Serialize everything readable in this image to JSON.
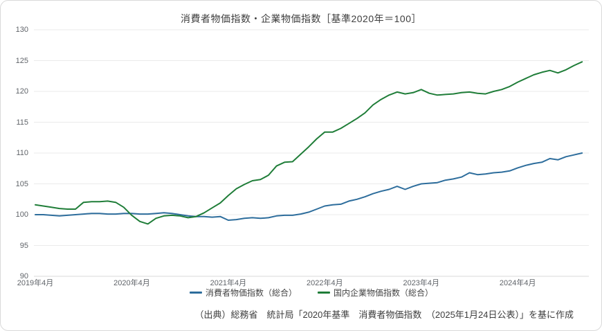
{
  "card": {
    "title": "消費者物価指数・企業物価指数［基準2020年＝100］",
    "caption": "（出典）総務省　統計局「2020年基準　消費者物価指数　（2025年1月24日公表）」を基に作成"
  },
  "colors": {
    "cpi_line": "#2d6d9c",
    "cgpi_line": "#1f7d38",
    "gridline": "#ebebeb",
    "axis_line": "#d9d9d9",
    "tick_text": "#5f6368"
  },
  "chart_data": {
    "type": "line",
    "title": "消費者物価指数・企業物価指数［基準2020年＝100］",
    "x_start": "2019年4月",
    "x_end": "2024年12月",
    "x_frequency": "monthly",
    "x_tick_labels": [
      "2019年4月",
      "2020年4月",
      "2021年4月",
      "2022年4月",
      "2023年4月",
      "2024年4月"
    ],
    "x_tick_month_indexes": [
      0,
      12,
      24,
      36,
      48,
      60
    ],
    "y_ticks": [
      90,
      95,
      100,
      105,
      110,
      115,
      120,
      125,
      130
    ],
    "ylim": [
      90,
      130
    ],
    "grid": true,
    "legend_position": "bottom",
    "series": [
      {
        "name": "消費者物価指数（総合）",
        "color": "#2d6d9c",
        "values": [
          100.0,
          100.0,
          99.9,
          99.8,
          99.9,
          100.0,
          100.1,
          100.2,
          100.2,
          100.1,
          100.1,
          100.2,
          100.2,
          100.1,
          100.1,
          100.2,
          100.3,
          100.2,
          100.0,
          99.8,
          99.7,
          99.7,
          99.6,
          99.7,
          99.1,
          99.2,
          99.4,
          99.5,
          99.4,
          99.5,
          99.8,
          99.9,
          99.9,
          100.1,
          100.4,
          100.9,
          101.4,
          101.6,
          101.7,
          102.2,
          102.5,
          102.9,
          103.4,
          103.8,
          104.1,
          104.6,
          104.1,
          104.6,
          105.0,
          105.1,
          105.2,
          105.6,
          105.8,
          106.1,
          106.8,
          106.5,
          106.6,
          106.8,
          106.9,
          107.1,
          107.6,
          108.0,
          108.3,
          108.5,
          109.1,
          108.9,
          109.4,
          109.7,
          110.0
        ]
      },
      {
        "name": "国内企業物価指数（総合）",
        "color": "#1f7d38",
        "values": [
          101.6,
          101.4,
          101.2,
          101.0,
          100.9,
          100.9,
          102.0,
          102.1,
          102.1,
          102.2,
          102.0,
          101.2,
          99.9,
          98.9,
          98.5,
          99.4,
          99.8,
          99.9,
          99.8,
          99.5,
          99.7,
          100.3,
          101.1,
          101.9,
          103.1,
          104.2,
          104.9,
          105.5,
          105.7,
          106.4,
          107.9,
          108.5,
          108.6,
          109.8,
          111.0,
          112.3,
          113.4,
          113.4,
          114.0,
          114.8,
          115.6,
          116.5,
          117.8,
          118.7,
          119.4,
          119.9,
          119.6,
          119.8,
          120.3,
          119.7,
          119.4,
          119.5,
          119.6,
          119.8,
          119.9,
          119.7,
          119.6,
          120.0,
          120.3,
          120.8,
          121.5,
          122.1,
          122.7,
          123.1,
          123.4,
          123.0,
          123.5,
          124.2,
          124.8
        ]
      }
    ]
  }
}
